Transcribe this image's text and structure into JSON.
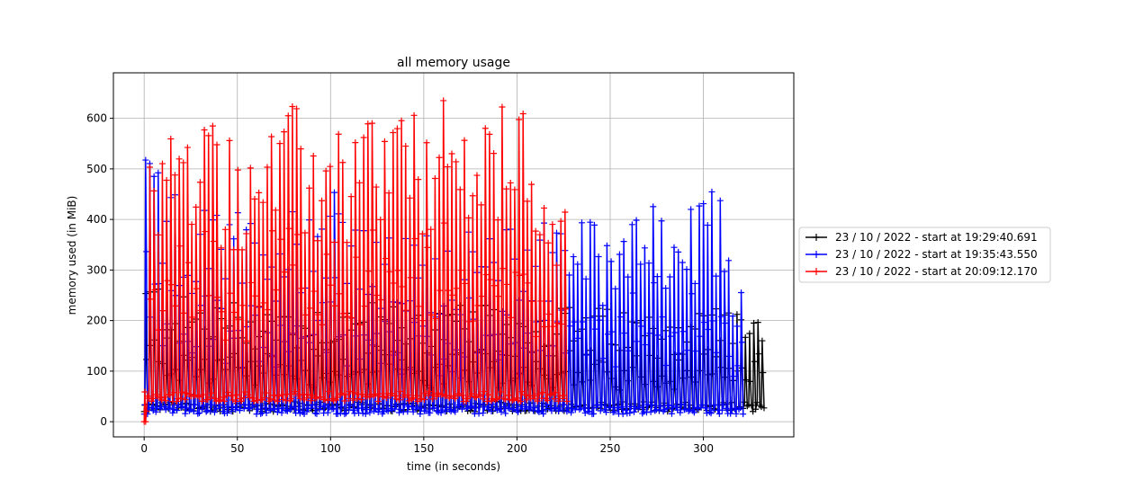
{
  "chart_data": {
    "type": "line",
    "title": "all memory usage",
    "xlabel": "time (in seconds)",
    "ylabel": "memory used (in MiB)",
    "xlim": [
      -16.5,
      348.5
    ],
    "ylim": [
      -30,
      690
    ],
    "x_ticks": [
      0,
      50,
      100,
      150,
      200,
      250,
      300
    ],
    "y_ticks": [
      0,
      100,
      200,
      300,
      400,
      500,
      600
    ],
    "grid": true,
    "legend_position": "center-right-outside",
    "series": [
      {
        "name": "23 / 10 / 2022 - start at 19:29:40.691",
        "color": "#000000",
        "marker": "+",
        "baseline": 20,
        "period": 2.25,
        "t_end": 333,
        "peaks": [
          [
            3,
            300
          ],
          [
            20,
            250
          ],
          [
            50,
            245
          ],
          [
            100,
            240
          ],
          [
            150,
            235
          ],
          [
            200,
            230
          ],
          [
            225,
            235
          ],
          [
            250,
            225
          ],
          [
            300,
            230
          ],
          [
            330,
            255
          ]
        ]
      },
      {
        "name": "23 / 10 / 2022 - start at 19:35:43.550",
        "color": "#0000ff",
        "marker": "+",
        "baseline": 15,
        "period": 2.25,
        "t_end": 320,
        "peaks": [
          [
            3,
            520
          ],
          [
            20,
            430
          ],
          [
            45,
            430
          ],
          [
            60,
            410
          ],
          [
            80,
            440
          ],
          [
            105,
            525
          ],
          [
            120,
            360
          ],
          [
            150,
            380
          ],
          [
            190,
            380
          ],
          [
            210,
            420
          ],
          [
            230,
            455
          ],
          [
            245,
            380
          ],
          [
            258,
            490
          ],
          [
            275,
            420
          ],
          [
            290,
            420
          ],
          [
            309,
            478
          ],
          [
            320,
            255
          ]
        ]
      },
      {
        "name": "23 / 10 / 2022 - start at 20:09:12.170",
        "color": "#ff0000",
        "marker": "+",
        "baseline": 40,
        "period": 2.25,
        "t_end": 227,
        "peaks": [
          [
            0,
            0
          ],
          [
            2,
            565
          ],
          [
            16,
            625
          ],
          [
            43,
            605
          ],
          [
            55,
            585
          ],
          [
            80,
            630
          ],
          [
            105,
            580
          ],
          [
            126,
            655
          ],
          [
            140,
            615
          ],
          [
            153,
            635
          ],
          [
            175,
            640
          ],
          [
            207,
            630
          ],
          [
            220,
            555
          ],
          [
            227,
            385
          ]
        ]
      }
    ]
  }
}
